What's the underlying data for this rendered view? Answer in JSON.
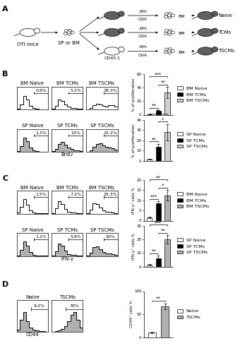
{
  "panel_labels": [
    "A",
    "B",
    "C",
    "D"
  ],
  "diagram": {
    "source": "OTI mice",
    "cells": "SP or BM",
    "host": "CD45.1",
    "arrow_top": "24h",
    "arrow_bottom": "OVA",
    "harvest": "BM",
    "groups": [
      "Naive",
      "TCMs",
      "TSCMs"
    ]
  },
  "chart_data": [
    {
      "type": "histogram",
      "title": "BM Naive",
      "bins": [
        0,
        10,
        20,
        30,
        40,
        50,
        60,
        70,
        80,
        90,
        100
      ],
      "counts": [
        4,
        35,
        95,
        70,
        25,
        8,
        3,
        1,
        1,
        1
      ],
      "xlim": [
        0,
        100
      ],
      "ylim": [
        0,
        160
      ],
      "tick_labels": false,
      "color": "white",
      "gate": [
        55,
        100
      ],
      "annotation": "0.8%"
    },
    {
      "type": "histogram",
      "title": "BM TCMs",
      "bins": [
        0,
        10,
        20,
        30,
        40,
        50,
        60,
        70,
        80,
        90,
        100
      ],
      "counts": [
        3,
        25,
        70,
        60,
        35,
        18,
        10,
        8,
        6,
        4
      ],
      "xlim": [
        0,
        100
      ],
      "ylim": [
        0,
        160
      ],
      "tick_labels": false,
      "color": "white",
      "gate": [
        55,
        100
      ],
      "annotation": "5.2%"
    },
    {
      "type": "histogram",
      "title": "BM TSCMs",
      "bins": [
        0,
        10,
        20,
        30,
        40,
        50,
        60,
        70,
        80,
        90,
        100
      ],
      "counts": [
        2,
        12,
        30,
        40,
        35,
        25,
        20,
        28,
        32,
        20
      ],
      "xlim": [
        0,
        100
      ],
      "ylim": [
        0,
        160
      ],
      "tick_labels": false,
      "color": "white",
      "gate": [
        55,
        100
      ],
      "annotation": "38.3%"
    },
    {
      "type": "bar",
      "categories": [
        "BM Naive",
        "BM TCMs",
        "BM TSCMs"
      ],
      "values": [
        0.8,
        5.5,
        33
      ],
      "errors": [
        0.3,
        0.8,
        8
      ],
      "colors": [
        "white",
        "black",
        "#d0d0d0"
      ],
      "ylim": [
        0,
        60
      ],
      "yticks": [
        0,
        20,
        40,
        60
      ],
      "ylabel": "% of proliferation",
      "legend": "center left",
      "tick_labels": "y",
      "significance": [
        {
          "pair": [
            0,
            1
          ],
          "label": "**"
        },
        {
          "pair": [
            1,
            2
          ],
          "label": "**"
        },
        {
          "pair": [
            0,
            2
          ],
          "label": "***"
        }
      ]
    },
    {
      "type": "histogram",
      "title": "SP Naive",
      "bins": [
        0,
        10,
        20,
        30,
        40,
        50,
        60,
        70,
        80,
        90,
        100
      ],
      "counts": [
        5,
        40,
        100,
        75,
        30,
        10,
        4,
        2,
        1,
        1
      ],
      "xlim": [
        0,
        100
      ],
      "ylim": [
        0,
        160
      ],
      "tick_labels": false,
      "color": "#b0b0b0",
      "gate": [
        55,
        100
      ],
      "annotation": "1.3%"
    },
    {
      "type": "histogram",
      "title": "SP TCMs",
      "bins": [
        0,
        10,
        20,
        30,
        40,
        50,
        60,
        70,
        80,
        90,
        100
      ],
      "counts": [
        3,
        20,
        55,
        70,
        50,
        30,
        18,
        12,
        8,
        4
      ],
      "xlim": [
        0,
        100
      ],
      "ylim": [
        0,
        160
      ],
      "tick_labels": false,
      "color": "#b0b0b0",
      "gate": [
        55,
        100
      ],
      "annotation": "13%",
      "xlabel": "BrdU"
    },
    {
      "type": "histogram",
      "title": "SP TSCMs",
      "bins": [
        0,
        10,
        20,
        30,
        40,
        50,
        60,
        70,
        80,
        90,
        100
      ],
      "counts": [
        2,
        12,
        35,
        55,
        60,
        45,
        35,
        30,
        25,
        15
      ],
      "xlim": [
        0,
        100
      ],
      "ylim": [
        0,
        160
      ],
      "tick_labels": false,
      "color": "#b0b0b0",
      "gate": [
        55,
        100
      ],
      "annotation": "33.2%"
    },
    {
      "type": "bar",
      "categories": [
        "SP Naive",
        "SP TCMs",
        "SP TSCMs"
      ],
      "values": [
        1.5,
        13.5,
        28
      ],
      "errors": [
        0.5,
        3,
        8
      ],
      "colors": [
        "white",
        "black",
        "#d0d0d0"
      ],
      "ylim": [
        0,
        40
      ],
      "yticks": [
        0,
        10,
        20,
        30,
        40
      ],
      "ylabel": "% of proliferation",
      "legend": "center left",
      "tick_labels": "y",
      "significance": [
        {
          "pair": [
            0,
            1
          ],
          "label": "**"
        },
        {
          "pair": [
            1,
            2
          ],
          "label": "*"
        },
        {
          "pair": [
            0,
            2
          ],
          "label": "**"
        }
      ]
    },
    {
      "type": "histogram",
      "title": "BM Naive",
      "bins": [
        0,
        10,
        20,
        30,
        40,
        50,
        60,
        70,
        80,
        90,
        100
      ],
      "counts": [
        5,
        45,
        100,
        60,
        20,
        6,
        3,
        2,
        1,
        1
      ],
      "xlim": [
        0,
        100
      ],
      "ylim": [
        0,
        160
      ],
      "tick_labels": false,
      "color": "white",
      "gate": [
        55,
        100
      ],
      "annotation": "1.5%"
    },
    {
      "type": "histogram",
      "title": "BM TCMs",
      "bins": [
        0,
        10,
        20,
        30,
        40,
        50,
        60,
        70,
        80,
        90,
        100
      ],
      "counts": [
        4,
        35,
        85,
        65,
        30,
        12,
        8,
        6,
        4,
        2
      ],
      "xlim": [
        0,
        100
      ],
      "ylim": [
        0,
        160
      ],
      "tick_labels": false,
      "color": "white",
      "gate": [
        55,
        100
      ],
      "annotation": "7.2%"
    },
    {
      "type": "histogram",
      "title": "BM TSCMs",
      "bins": [
        0,
        10,
        20,
        30,
        40,
        50,
        60,
        70,
        80,
        90,
        100
      ],
      "counts": [
        3,
        25,
        70,
        65,
        40,
        20,
        14,
        12,
        8,
        4
      ],
      "xlim": [
        0,
        100
      ],
      "ylim": [
        0,
        160
      ],
      "tick_labels": false,
      "color": "white",
      "gate": [
        55,
        100
      ],
      "annotation": "15.3%"
    },
    {
      "type": "bar",
      "categories": [
        "BM Naive",
        "BM TCMs",
        "BM TSCMs"
      ],
      "values": [
        1.5,
        8.5,
        12.5
      ],
      "errors": [
        0.4,
        1,
        2.5
      ],
      "colors": [
        "white",
        "black",
        "#b0b0b0"
      ],
      "ylim": [
        0,
        20
      ],
      "yticks": [
        0,
        5,
        10,
        15,
        20
      ],
      "ylabel": "IFN-γ⁺ cells %",
      "legend": "center left",
      "tick_labels": "y",
      "significance": [
        {
          "pair": [
            0,
            1
          ],
          "label": "***"
        },
        {
          "pair": [
            1,
            2
          ],
          "label": "*"
        },
        {
          "pair": [
            0,
            2
          ],
          "label": "**"
        }
      ]
    },
    {
      "type": "histogram",
      "title": "SP Naive",
      "bins": [
        0,
        10,
        20,
        30,
        40,
        50,
        60,
        70,
        80,
        90,
        100
      ],
      "counts": [
        4,
        40,
        100,
        70,
        25,
        8,
        3,
        2,
        1,
        1
      ],
      "xlim": [
        0,
        100
      ],
      "ylim": [
        0,
        160
      ],
      "tick_labels": false,
      "color": "#b0b0b0",
      "gate": [
        55,
        100
      ],
      "annotation": "1.2%"
    },
    {
      "type": "histogram",
      "title": "SP TCMs",
      "bins": [
        0,
        10,
        20,
        30,
        40,
        50,
        60,
        70,
        80,
        90,
        100
      ],
      "counts": [
        3,
        30,
        85,
        70,
        35,
        12,
        7,
        5,
        3,
        2
      ],
      "xlim": [
        0,
        100
      ],
      "ylim": [
        0,
        160
      ],
      "tick_labels": false,
      "color": "#b0b0b0",
      "gate": [
        55,
        100
      ],
      "annotation": "5.8%",
      "xlabel": "IFN-γ"
    },
    {
      "type": "histogram",
      "title": "SP TSCMs",
      "bins": [
        0,
        10,
        20,
        30,
        40,
        50,
        60,
        70,
        80,
        90,
        100
      ],
      "counts": [
        2,
        20,
        60,
        65,
        45,
        25,
        18,
        15,
        10,
        5
      ],
      "xlim": [
        0,
        100
      ],
      "ylim": [
        0,
        160
      ],
      "tick_labels": false,
      "color": "#b0b0b0",
      "gate": [
        55,
        100
      ],
      "annotation": "20%"
    },
    {
      "type": "bar",
      "categories": [
        "SP Naive",
        "SP TCMs",
        "SP TSCMs"
      ],
      "values": [
        1.5,
        6,
        20
      ],
      "errors": [
        0.5,
        2,
        3
      ],
      "colors": [
        "white",
        "black",
        "#b0b0b0"
      ],
      "ylim": [
        0,
        30
      ],
      "yticks": [
        0,
        10,
        20,
        30
      ],
      "ylabel": "IFN-γ⁺ cells %",
      "legend": "center left",
      "tick_labels": "y",
      "significance": [
        {
          "pair": [
            0,
            1
          ],
          "label": "**"
        },
        {
          "pair": [
            1,
            2
          ],
          "label": "**"
        },
        {
          "pair": [
            0,
            2
          ],
          "label": "***"
        }
      ]
    },
    {
      "type": "histogram",
      "title": "Naive",
      "bins": [
        0,
        10,
        20,
        30,
        40,
        50,
        60,
        70,
        80,
        90,
        100
      ],
      "counts": [
        10,
        60,
        100,
        55,
        20,
        12,
        8,
        5,
        2,
        1
      ],
      "xlim": [
        0,
        100
      ],
      "ylim": [
        0,
        160
      ],
      "tick_labels": false,
      "color": "#b0b0b0",
      "gate": [
        45,
        100
      ],
      "annotation": "9.2%",
      "xlabel": "CD44"
    },
    {
      "type": "histogram",
      "title": "TSCMs",
      "bins": [
        0,
        10,
        20,
        30,
        40,
        50,
        60,
        70,
        80,
        90,
        100
      ],
      "counts": [
        1,
        3,
        8,
        15,
        30,
        55,
        85,
        100,
        60,
        20
      ],
      "xlim": [
        0,
        100
      ],
      "ylim": [
        0,
        160
      ],
      "tick_labels": false,
      "color": "#b0b0b0",
      "gate": [
        45,
        100
      ],
      "annotation": "78%"
    },
    {
      "type": "bar",
      "categories": [
        "Naive",
        "TSCMs"
      ],
      "values": [
        10,
        67
      ],
      "errors": [
        2,
        6
      ],
      "colors": [
        "white",
        "#b0b0b0"
      ],
      "ylim": [
        0,
        100
      ],
      "yticks": [
        0,
        50,
        100
      ],
      "ylabel": "CD44⁺ cells %",
      "legend": "center left",
      "tick_labels": "y",
      "significance": [
        {
          "pair": [
            0,
            1
          ],
          "label": "**"
        }
      ]
    }
  ]
}
